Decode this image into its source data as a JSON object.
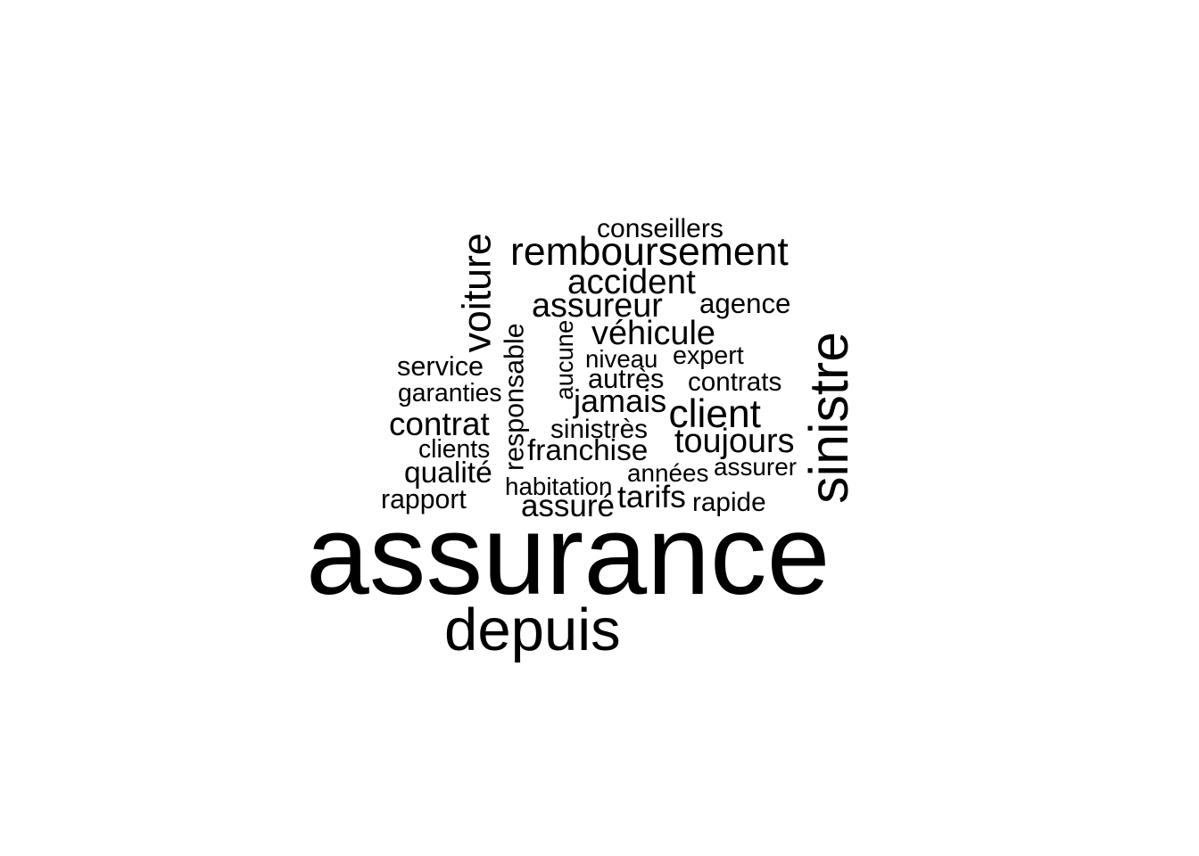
{
  "word_cloud": {
    "text_color": "#000000",
    "background": "#ffffff",
    "words": [
      {
        "text": "assurance",
        "rank": 1,
        "orientation": "horizontal"
      },
      {
        "text": "depuis",
        "rank": 2,
        "orientation": "horizontal"
      },
      {
        "text": "sinistre",
        "rank": 3,
        "orientation": "vertical"
      },
      {
        "text": "remboursement",
        "rank": 4,
        "orientation": "horizontal"
      },
      {
        "text": "voiture",
        "rank": 5,
        "orientation": "vertical"
      },
      {
        "text": "accident",
        "rank": 6,
        "orientation": "horizontal"
      },
      {
        "text": "client",
        "rank": 7,
        "orientation": "horizontal"
      },
      {
        "text": "assureur",
        "rank": 8,
        "orientation": "horizontal"
      },
      {
        "text": "véhicule",
        "rank": 9,
        "orientation": "horizontal"
      },
      {
        "text": "contrat",
        "rank": 10,
        "orientation": "horizontal"
      },
      {
        "text": "toujours",
        "rank": 11,
        "orientation": "horizontal"
      },
      {
        "text": "jamais",
        "rank": 12,
        "orientation": "horizontal"
      },
      {
        "text": "tarifs",
        "rank": 13,
        "orientation": "horizontal"
      },
      {
        "text": "assuré",
        "rank": 14,
        "orientation": "horizontal"
      },
      {
        "text": "qualité",
        "rank": 15,
        "orientation": "horizontal"
      },
      {
        "text": "franchise",
        "rank": 16,
        "orientation": "horizontal"
      },
      {
        "text": "autrès",
        "rank": 17,
        "orientation": "horizontal"
      },
      {
        "text": "conseillers",
        "rank": 18,
        "orientation": "horizontal"
      },
      {
        "text": "agence",
        "rank": 19,
        "orientation": "horizontal"
      },
      {
        "text": "service",
        "rank": 20,
        "orientation": "horizontal"
      },
      {
        "text": "contrats",
        "rank": 21,
        "orientation": "horizontal"
      },
      {
        "text": "expert",
        "rank": 22,
        "orientation": "horizontal"
      },
      {
        "text": "niveau",
        "rank": 23,
        "orientation": "horizontal"
      },
      {
        "text": "garanties",
        "rank": 24,
        "orientation": "horizontal"
      },
      {
        "text": "responsable",
        "rank": 25,
        "orientation": "vertical"
      },
      {
        "text": "aucune",
        "rank": 26,
        "orientation": "vertical"
      },
      {
        "text": "sinistrès",
        "rank": 27,
        "orientation": "horizontal"
      },
      {
        "text": "clients",
        "rank": 28,
        "orientation": "horizontal"
      },
      {
        "text": "assurer",
        "rank": 29,
        "orientation": "horizontal"
      },
      {
        "text": "années",
        "rank": 30,
        "orientation": "horizontal"
      },
      {
        "text": "habitation",
        "rank": 31,
        "orientation": "horizontal"
      },
      {
        "text": "rapport",
        "rank": 32,
        "orientation": "horizontal"
      },
      {
        "text": "rapide",
        "rank": 33,
        "orientation": "horizontal"
      }
    ]
  }
}
